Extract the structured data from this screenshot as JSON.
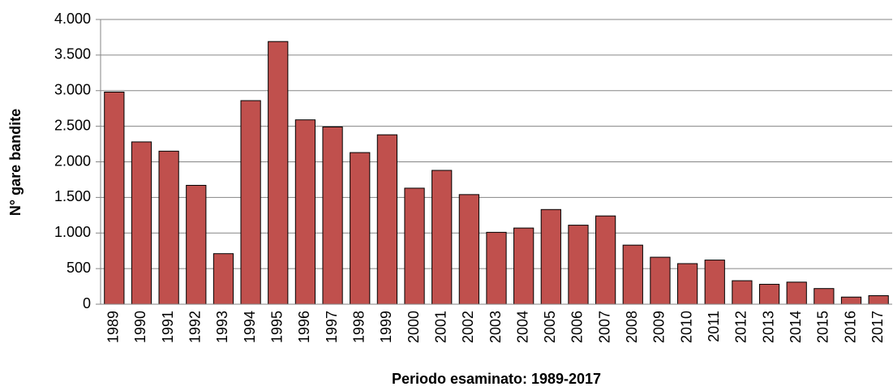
{
  "chart_data": {
    "type": "bar",
    "xlabel": "Periodo esaminato: 1989-2017",
    "ylabel": "N° gare bandite",
    "categories": [
      "1989",
      "1990",
      "1991",
      "1992",
      "1993",
      "1994",
      "1995",
      "1996",
      "1997",
      "1998",
      "1999",
      "2000",
      "2001",
      "2002",
      "2003",
      "2004",
      "2005",
      "2006",
      "2007",
      "2008",
      "2009",
      "2010",
      "2011",
      "2012",
      "2013",
      "2014",
      "2015",
      "2016",
      "2017"
    ],
    "values": [
      2980,
      2280,
      2150,
      1670,
      710,
      2860,
      3690,
      2590,
      2490,
      2130,
      2380,
      1630,
      1880,
      1540,
      1010,
      1070,
      1330,
      1110,
      1240,
      830,
      660,
      570,
      620,
      330,
      280,
      310,
      220,
      100,
      120
    ],
    "color": "#c0504d",
    "ylim": [
      0,
      4000
    ],
    "yticks": [
      0,
      500,
      {
        "value": 1000,
        "label": "1.000"
      },
      {
        "value": 1500,
        "label": "1.500"
      },
      {
        "value": 2000,
        "label": "2.000"
      },
      {
        "value": 2500,
        "label": "2.500"
      },
      {
        "value": 3000,
        "label": "3.000"
      },
      {
        "value": 3500,
        "label": "3.500"
      },
      {
        "value": 4000,
        "label": "4.000"
      }
    ],
    "grid": true
  }
}
